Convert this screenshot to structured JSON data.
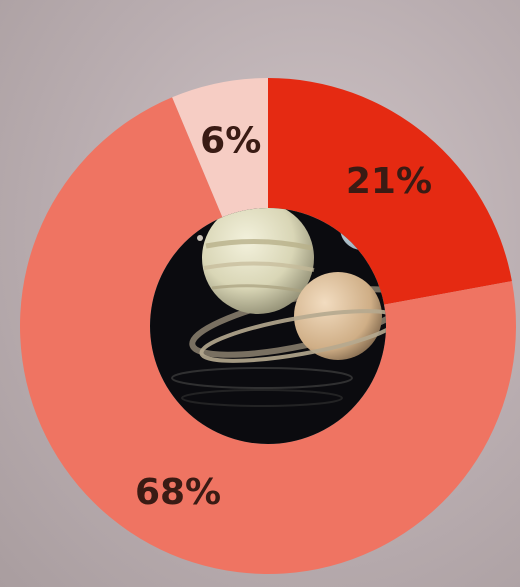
{
  "chart_data": {
    "type": "pie",
    "variant": "donut",
    "categories": [
      "",
      "",
      ""
    ],
    "values": [
      21,
      68,
      6
    ],
    "labels": [
      "21%",
      "68%",
      "6%"
    ],
    "colors": [
      "#e52a12",
      "#ef7462",
      "#f6cdc4"
    ],
    "label_color": "#3a1b14",
    "center_image": "planets-photo"
  }
}
